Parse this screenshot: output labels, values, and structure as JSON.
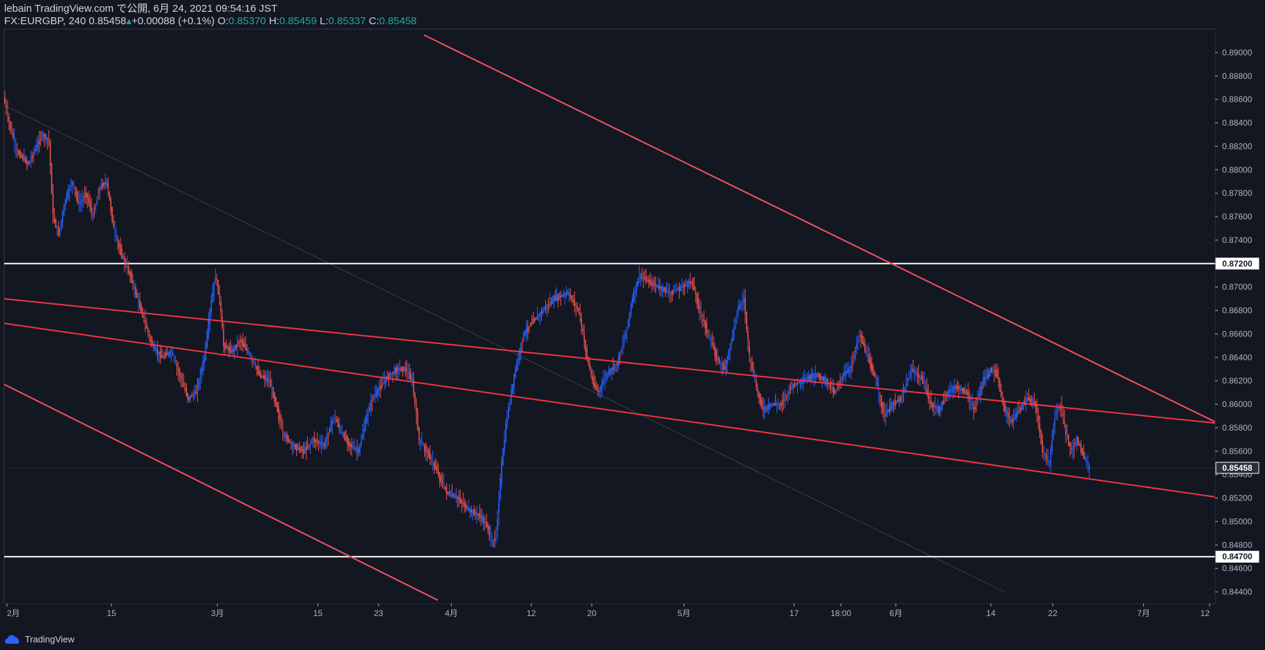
{
  "header": {
    "line1": "lebain TradingView.com で公開, 6月 24, 2021 09:54:16 JST",
    "symbol": "FX:EURGBP, 240",
    "last": "0.85458",
    "change": "+0.00088 (+0.1%)",
    "o_label": "O:",
    "o": "0.85370",
    "h_label": "H:",
    "h": "0.85459",
    "l_label": "L:",
    "l": "0.85337",
    "c_label": "C:",
    "c": "0.85458"
  },
  "footer": {
    "brand": "TradingView"
  },
  "colors": {
    "bg": "#131722",
    "up": "#2962ff",
    "down": "#ef5350",
    "trend": "#f23645",
    "channel": "#f7525f",
    "level": "#ffffff",
    "axis": "#b2b5be"
  },
  "chart_data": {
    "type": "line",
    "title": "FX:EURGBP 240",
    "ylim": [
      0.843,
      0.892
    ],
    "y_ticks": [
      "0.89000",
      "0.88800",
      "0.88600",
      "0.88400",
      "0.88200",
      "0.88000",
      "0.87800",
      "0.87600",
      "0.87400",
      "0.87200",
      "0.87000",
      "0.86800",
      "0.86600",
      "0.86400",
      "0.86200",
      "0.86000",
      "0.85800",
      "0.85600",
      "0.85400",
      "0.85200",
      "0.85000",
      "0.84800",
      "0.84600",
      "0.84400"
    ],
    "x_ticks": [
      "2月",
      "15",
      "3月",
      "15",
      "23",
      "4月",
      "12",
      "20",
      "5月",
      "17",
      "18:00",
      "6月",
      "14",
      "22",
      "7月",
      "12"
    ],
    "x_tick_bars": [
      2,
      78,
      155,
      228,
      272,
      325,
      383,
      427,
      494,
      574,
      608,
      648,
      717,
      762,
      828,
      876
    ],
    "total_bars": 880,
    "price_labels": [
      {
        "label": "0.87200",
        "value": 0.872,
        "style": "level"
      },
      {
        "label": "0.85458",
        "value": 0.85458,
        "style": "last"
      },
      {
        "label": "0.84700",
        "value": 0.847,
        "style": "level"
      }
    ],
    "horizontal_levels": [
      0.872,
      0.847
    ],
    "trendlines": [
      {
        "name": "upper-trendline",
        "from": [
          0,
          0.869
        ],
        "to": [
          880,
          0.8584
        ]
      },
      {
        "name": "lower-trendline",
        "from": [
          0,
          0.8669
        ],
        "to": [
          880,
          0.8521
        ]
      },
      {
        "name": "outer-upper-channel",
        "from": [
          305,
          0.8915
        ],
        "to": [
          880,
          0.8585
        ]
      },
      {
        "name": "outer-lower-channel",
        "from": [
          0,
          0.8617
        ],
        "to": [
          315,
          0.8433
        ]
      }
    ],
    "series": [
      {
        "name": "price",
        "points": [
          [
            0,
            0.8862
          ],
          [
            5,
            0.8835
          ],
          [
            10,
            0.8815
          ],
          [
            18,
            0.8805
          ],
          [
            28,
            0.883
          ],
          [
            33,
            0.8825
          ],
          [
            36,
            0.876
          ],
          [
            40,
            0.8745
          ],
          [
            45,
            0.8775
          ],
          [
            50,
            0.879
          ],
          [
            55,
            0.877
          ],
          [
            60,
            0.878
          ],
          [
            65,
            0.876
          ],
          [
            70,
            0.8785
          ],
          [
            75,
            0.879
          ],
          [
            80,
            0.875
          ],
          [
            85,
            0.873
          ],
          [
            92,
            0.871
          ],
          [
            100,
            0.868
          ],
          [
            108,
            0.865
          ],
          [
            115,
            0.864
          ],
          [
            122,
            0.8645
          ],
          [
            128,
            0.8625
          ],
          [
            134,
            0.8605
          ],
          [
            140,
            0.861
          ],
          [
            146,
            0.864
          ],
          [
            150,
            0.868
          ],
          [
            154,
            0.871
          ],
          [
            157,
            0.869
          ],
          [
            160,
            0.865
          ],
          [
            166,
            0.8645
          ],
          [
            172,
            0.8655
          ],
          [
            180,
            0.864
          ],
          [
            186,
            0.8625
          ],
          [
            193,
            0.862
          ],
          [
            198,
            0.86
          ],
          [
            203,
            0.8575
          ],
          [
            210,
            0.8565
          ],
          [
            218,
            0.856
          ],
          [
            225,
            0.857
          ],
          [
            233,
            0.8565
          ],
          [
            240,
            0.859
          ],
          [
            246,
            0.8575
          ],
          [
            252,
            0.8565
          ],
          [
            258,
            0.856
          ],
          [
            264,
            0.859
          ],
          [
            268,
            0.8605
          ],
          [
            274,
            0.8615
          ],
          [
            280,
            0.8625
          ],
          [
            286,
            0.863
          ],
          [
            292,
            0.863
          ],
          [
            297,
            0.862
          ],
          [
            302,
            0.857
          ],
          [
            310,
            0.8555
          ],
          [
            316,
            0.854
          ],
          [
            322,
            0.8525
          ],
          [
            330,
            0.852
          ],
          [
            338,
            0.851
          ],
          [
            346,
            0.8505
          ],
          [
            352,
            0.8495
          ],
          [
            355,
            0.848
          ],
          [
            358,
            0.849
          ],
          [
            362,
            0.855
          ],
          [
            366,
            0.859
          ],
          [
            372,
            0.863
          ],
          [
            378,
            0.866
          ],
          [
            384,
            0.867
          ],
          [
            392,
            0.868
          ],
          [
            400,
            0.869
          ],
          [
            410,
            0.8695
          ],
          [
            418,
            0.868
          ],
          [
            424,
            0.864
          ],
          [
            428,
            0.862
          ],
          [
            432,
            0.861
          ],
          [
            438,
            0.8625
          ],
          [
            446,
            0.8635
          ],
          [
            452,
            0.866
          ],
          [
            457,
            0.869
          ],
          [
            462,
            0.871
          ],
          [
            468,
            0.8705
          ],
          [
            476,
            0.87
          ],
          [
            485,
            0.8695
          ],
          [
            493,
            0.87
          ],
          [
            500,
            0.8705
          ],
          [
            506,
            0.868
          ],
          [
            512,
            0.866
          ],
          [
            518,
            0.864
          ],
          [
            524,
            0.863
          ],
          [
            528,
            0.865
          ],
          [
            533,
            0.868
          ],
          [
            538,
            0.869
          ],
          [
            542,
            0.864
          ],
          [
            548,
            0.861
          ],
          [
            552,
            0.8595
          ],
          [
            558,
            0.86
          ],
          [
            565,
            0.86
          ],
          [
            572,
            0.8615
          ],
          [
            580,
            0.862
          ],
          [
            590,
            0.8625
          ],
          [
            598,
            0.862
          ],
          [
            604,
            0.861
          ],
          [
            610,
            0.8625
          ],
          [
            615,
            0.863
          ],
          [
            622,
            0.866
          ],
          [
            628,
            0.864
          ],
          [
            634,
            0.862
          ],
          [
            640,
            0.859
          ],
          [
            646,
            0.86
          ],
          [
            652,
            0.8605
          ],
          [
            660,
            0.863
          ],
          [
            668,
            0.862
          ],
          [
            674,
            0.86
          ],
          [
            680,
            0.8595
          ],
          [
            686,
            0.861
          ],
          [
            692,
            0.8615
          ],
          [
            700,
            0.861
          ],
          [
            705,
            0.8595
          ],
          [
            712,
            0.862
          ],
          [
            718,
            0.863
          ],
          [
            722,
            0.8625
          ],
          [
            726,
            0.86
          ],
          [
            732,
            0.8585
          ],
          [
            738,
            0.8595
          ],
          [
            744,
            0.8605
          ],
          [
            750,
            0.86
          ],
          [
            755,
            0.856
          ],
          [
            760,
            0.855
          ],
          [
            764,
            0.859
          ],
          [
            768,
            0.86
          ],
          [
            772,
            0.8575
          ],
          [
            776,
            0.856
          ],
          [
            780,
            0.857
          ],
          [
            785,
            0.8555
          ],
          [
            789,
            0.8545
          ]
        ]
      }
    ]
  }
}
